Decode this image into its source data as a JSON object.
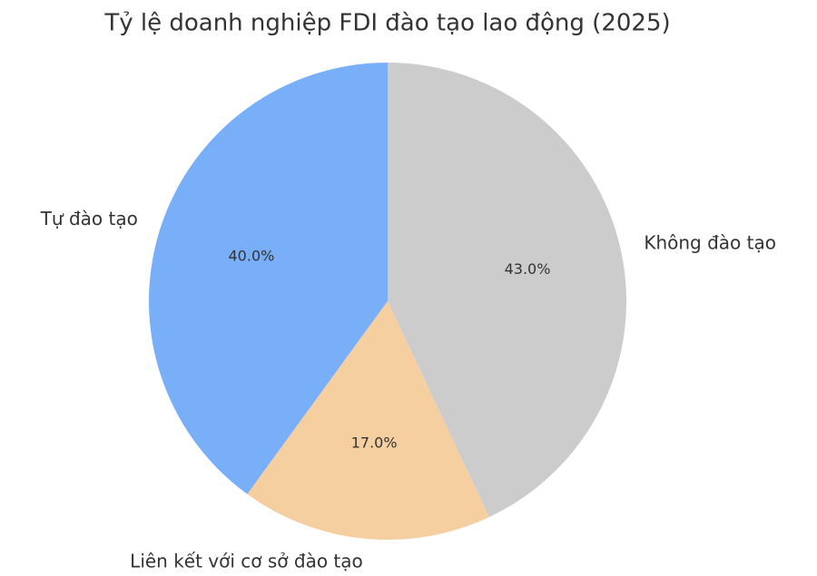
{
  "chart_data": {
    "type": "pie",
    "title": "Tỷ lệ doanh nghiệp FDI đào tạo lao động (2025)",
    "categories": [
      "Tự đào tạo",
      "Liên kết với cơ sở đào tạo",
      "Không đào tạo"
    ],
    "values": [
      40,
      17,
      43
    ],
    "value_labels": [
      "40.0%",
      "17.0%",
      "43.0%"
    ],
    "colors": [
      "#79aff8",
      "#f6cfa0",
      "#cccccc"
    ]
  }
}
